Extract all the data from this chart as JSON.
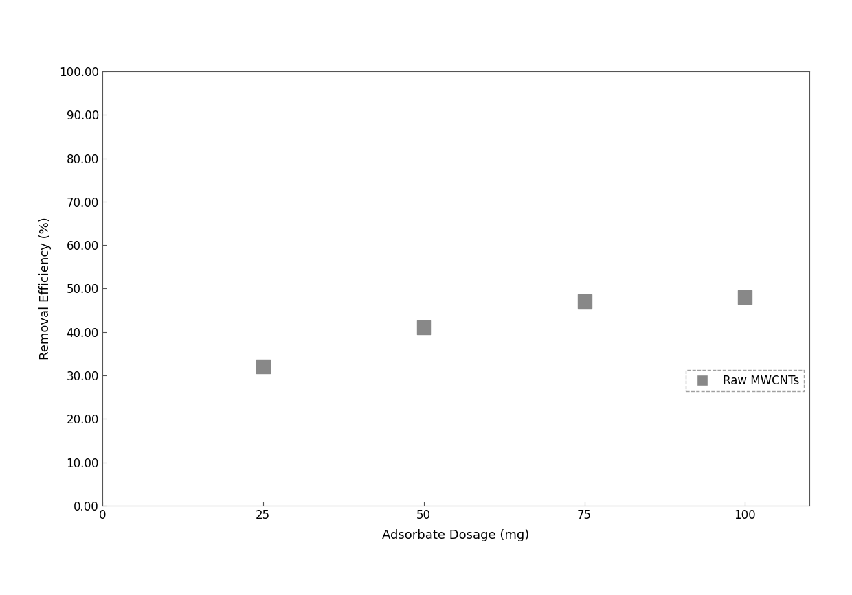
{
  "x": [
    25,
    50,
    75,
    100
  ],
  "y": [
    32.0,
    41.0,
    47.0,
    48.0
  ],
  "xlabel": "Adsorbate Dosage (mg)",
  "ylabel": "Removal Efficiency (%)",
  "xlim": [
    0,
    110
  ],
  "ylim": [
    0,
    100
  ],
  "xticks": [
    0,
    25,
    50,
    75,
    100
  ],
  "yticks": [
    0,
    10,
    20,
    30,
    40,
    50,
    60,
    70,
    80,
    90,
    100
  ],
  "ytick_labels": [
    "0.00",
    "10.00",
    "20.00",
    "30.00",
    "40.00",
    "50.00",
    "60.00",
    "70.00",
    "80.00",
    "90.00",
    "100.00"
  ],
  "legend_label": "Raw MWCNTs",
  "marker_color": "#888888",
  "marker_size": 14,
  "figure_facecolor": "#ffffff",
  "axis_facecolor": "#ffffff",
  "spine_color": "#aaaaaa",
  "xlabel_fontsize": 13,
  "ylabel_fontsize": 13,
  "tick_fontsize": 12,
  "legend_fontsize": 12
}
